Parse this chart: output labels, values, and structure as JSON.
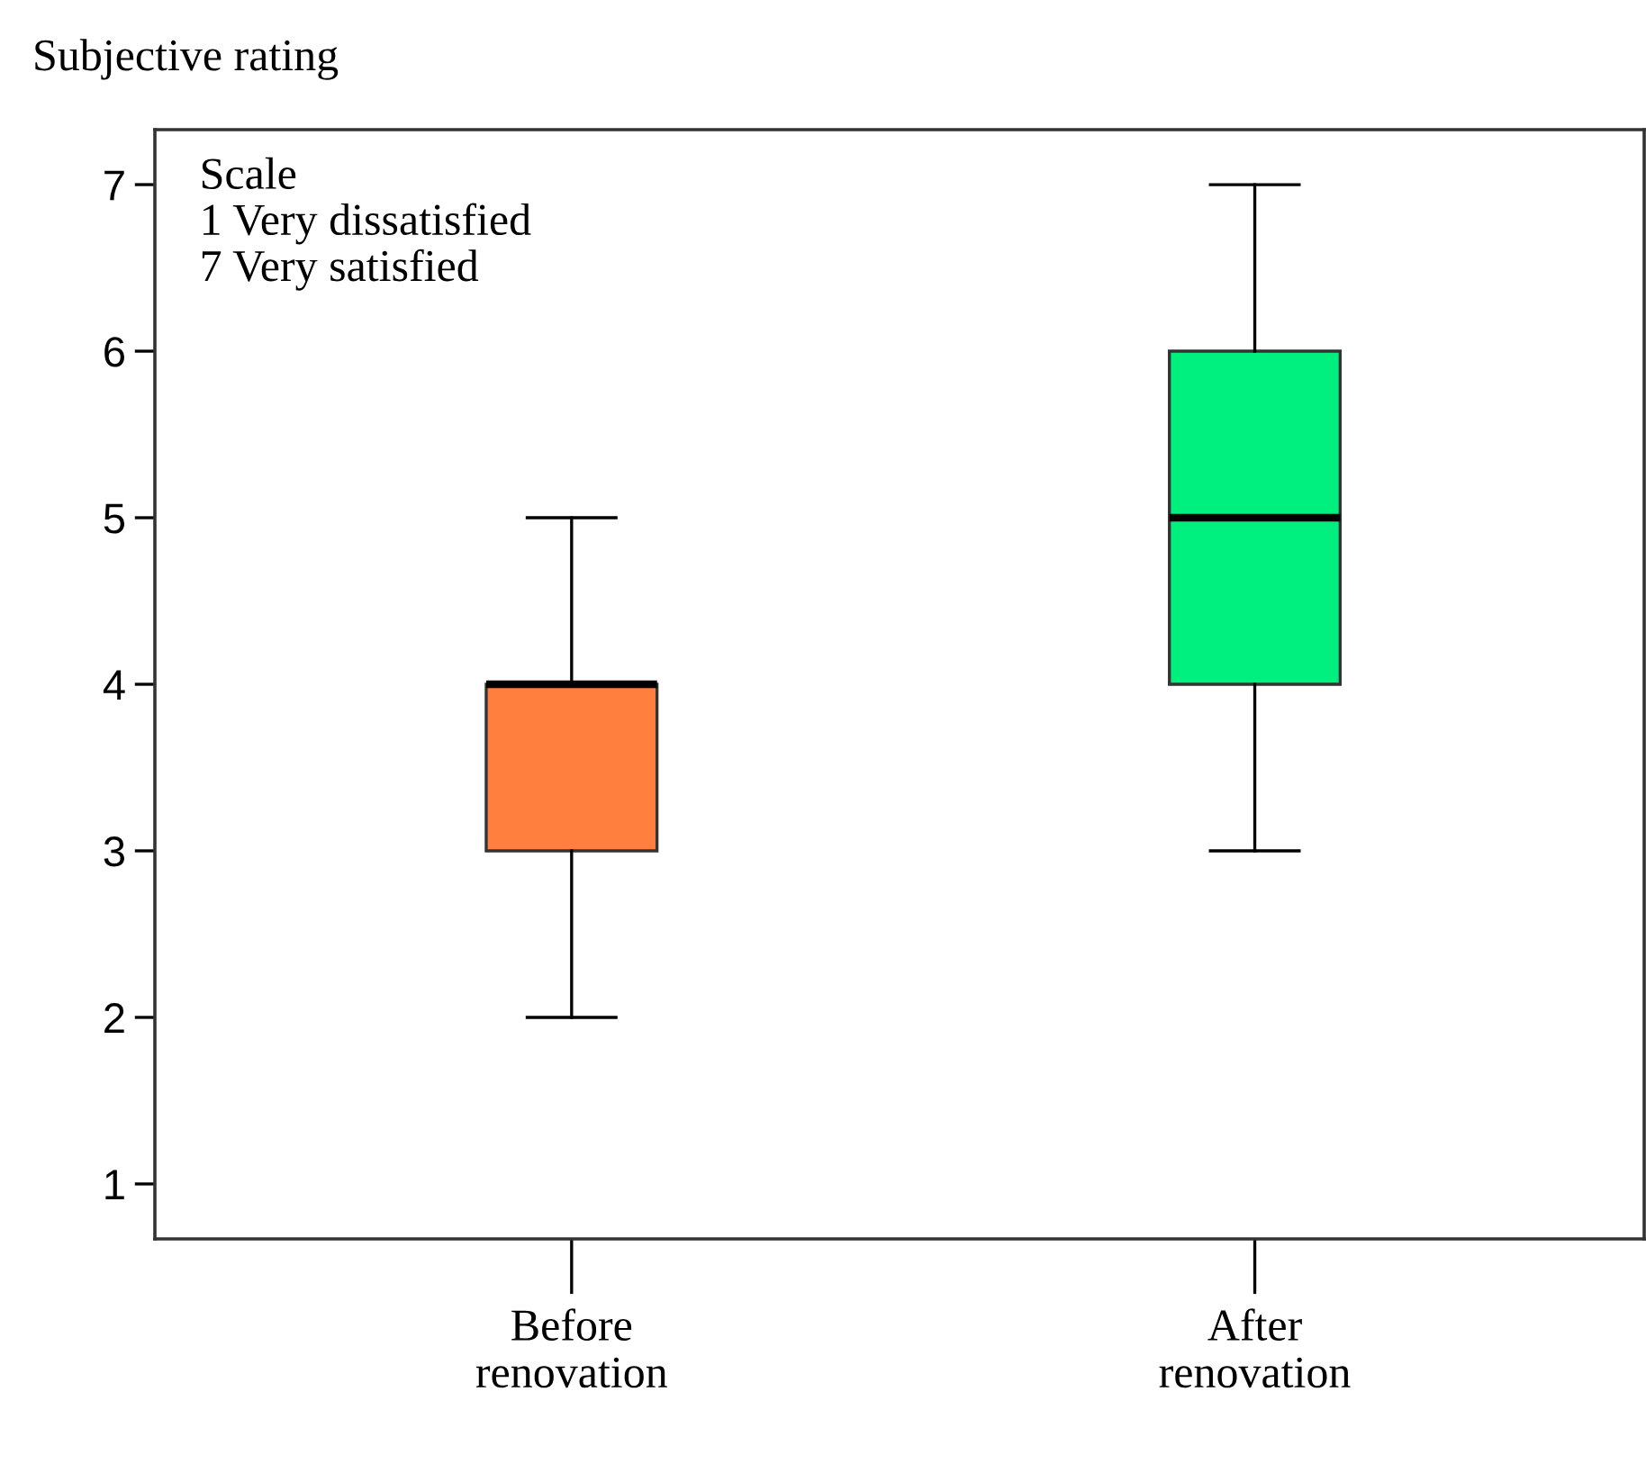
{
  "chart_data": {
    "type": "box",
    "ylabel": "Subjective rating",
    "categories": [
      "Before\nrenovation",
      "After\nrenovation"
    ],
    "boxes": [
      {
        "low": 2,
        "q1": 3,
        "median": 4,
        "q3": 4,
        "high": 5
      },
      {
        "low": 3,
        "q1": 4,
        "median": 5,
        "q3": 6,
        "high": 7
      }
    ],
    "colors": [
      "#ff7f3f",
      "#00f080"
    ],
    "ylim": [
      0.67,
      7.33
    ],
    "yticks": [
      1,
      2,
      3,
      4,
      5,
      6,
      7
    ],
    "grid": false,
    "legend": false,
    "annotations": [
      "Scale\n1 Very dissatisfied\n7 Very satisfied"
    ]
  }
}
